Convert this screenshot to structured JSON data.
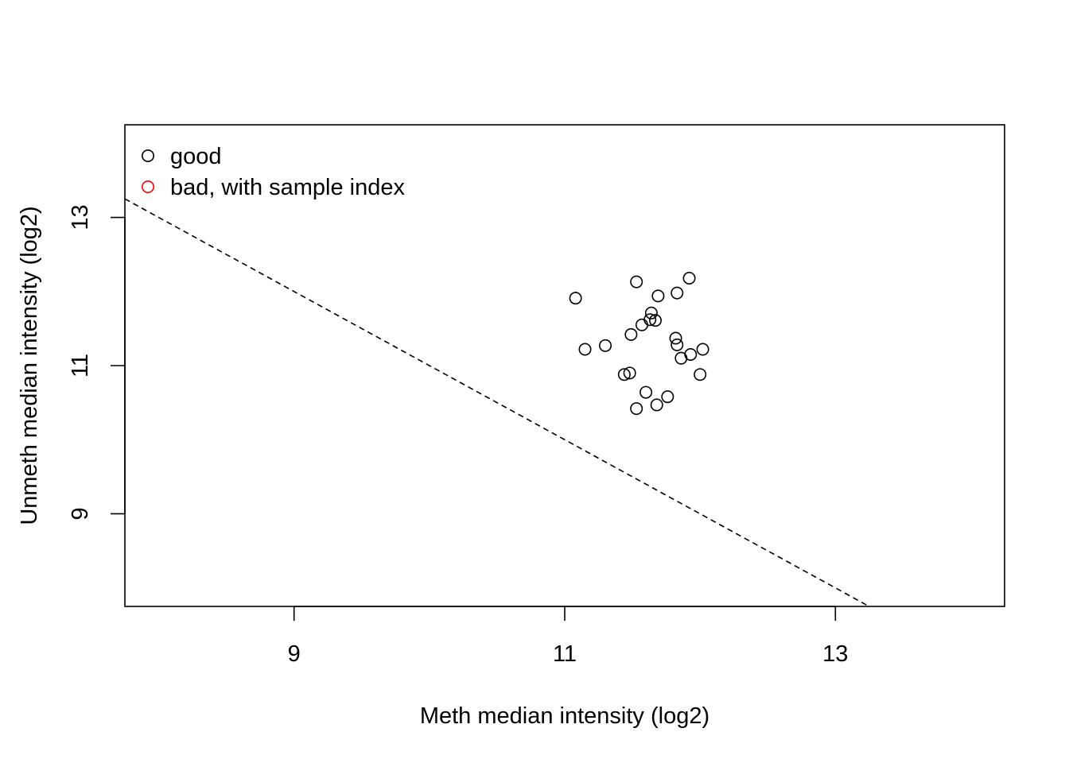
{
  "chart_data": {
    "type": "scatter",
    "title": "",
    "xlabel": "Meth median intensity (log2)",
    "ylabel": "Unmeth median intensity (log2)",
    "xlim": [
      7.75,
      14.25
    ],
    "ylim": [
      7.75,
      14.25
    ],
    "x_ticks": [
      9,
      11,
      13
    ],
    "y_ticks": [
      9,
      11,
      13
    ],
    "x_tick_labels": [
      "9",
      "11",
      "13"
    ],
    "y_tick_labels": [
      "9",
      "11",
      "13"
    ],
    "grid": false,
    "legend": {
      "position": "top-left",
      "entries": [
        {
          "label": "good",
          "color": "#000000"
        },
        {
          "label": "bad, with sample index",
          "color": "#ff0000"
        }
      ]
    },
    "cutoff_line": {
      "style": "dashed",
      "color": "#000000",
      "intercept": 21.0,
      "slope": -1
    },
    "series": [
      {
        "name": "good",
        "color": "#000000",
        "points": [
          [
            11.08,
            11.91
          ],
          [
            11.53,
            12.13
          ],
          [
            11.92,
            12.18
          ],
          [
            11.69,
            11.94
          ],
          [
            11.83,
            11.98
          ],
          [
            11.64,
            11.71
          ],
          [
            11.63,
            11.62
          ],
          [
            11.67,
            11.61
          ],
          [
            11.57,
            11.55
          ],
          [
            11.49,
            11.42
          ],
          [
            11.3,
            11.27
          ],
          [
            11.15,
            11.22
          ],
          [
            11.82,
            11.37
          ],
          [
            11.83,
            11.28
          ],
          [
            12.02,
            11.22
          ],
          [
            11.93,
            11.15
          ],
          [
            11.86,
            11.1
          ],
          [
            11.44,
            10.88
          ],
          [
            11.48,
            10.9
          ],
          [
            12.0,
            10.88
          ],
          [
            11.6,
            10.64
          ],
          [
            11.76,
            10.58
          ],
          [
            11.68,
            10.47
          ],
          [
            11.53,
            10.42
          ]
        ]
      },
      {
        "name": "bad, with sample index",
        "color": "#ff0000",
        "points": []
      }
    ]
  }
}
